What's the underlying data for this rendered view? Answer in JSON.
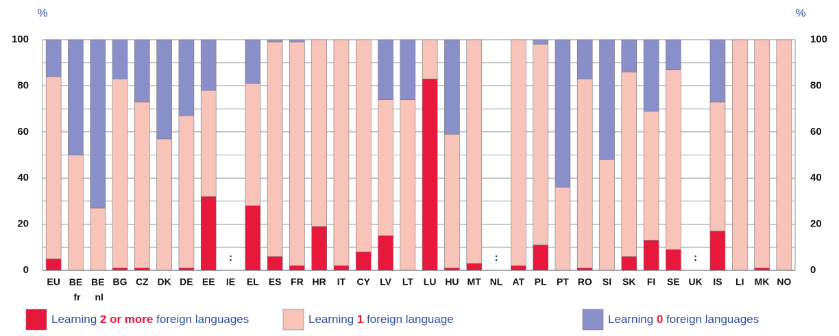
{
  "chart_data": {
    "type": "stacked_bar",
    "y_unit": "%",
    "na_label": ":",
    "categories": [
      "EU",
      "BE fr",
      "BE nl",
      "BG",
      "CZ",
      "DK",
      "DE",
      "EE",
      "IE",
      "EL",
      "ES",
      "FR",
      "HR",
      "IT",
      "CY",
      "LV",
      "LT",
      "LU",
      "HU",
      "MT",
      "NL",
      "AT",
      "PL",
      "PT",
      "RO",
      "SI",
      "SK",
      "FI",
      "SE",
      "UK",
      "IS",
      "LI",
      "MK",
      "NO"
    ],
    "series": [
      {
        "name": "Learning 2 or more foreign languages",
        "highlight": "2 or more",
        "color": "#e8173c",
        "values": [
          5,
          0,
          0,
          1,
          1,
          0,
          1,
          32,
          null,
          28,
          6,
          2,
          19,
          2,
          8,
          15,
          0,
          83,
          1,
          3,
          null,
          2,
          11,
          0,
          1,
          0,
          6,
          13,
          9,
          null,
          17,
          0,
          1,
          0
        ]
      },
      {
        "name": "Learning 1 foreign language",
        "highlight": "1",
        "color": "#f8c3b8",
        "values": [
          79,
          50,
          27,
          82,
          72,
          57,
          66,
          46,
          null,
          53,
          93,
          97,
          81,
          98,
          92,
          59,
          74,
          17,
          58,
          97,
          null,
          98,
          87,
          36,
          82,
          48,
          80,
          56,
          78,
          null,
          56,
          100,
          99,
          100
        ]
      },
      {
        "name": "Learning 0 foreign languages",
        "highlight": "0",
        "color": "#8a8fca",
        "values": [
          16,
          50,
          73,
          17,
          27,
          43,
          33,
          22,
          null,
          19,
          1,
          1,
          0,
          0,
          0,
          26,
          26,
          0,
          41,
          0,
          null,
          0,
          2,
          64,
          17,
          52,
          14,
          31,
          13,
          null,
          27,
          0,
          0,
          0
        ]
      }
    ],
    "ylim": [
      0,
      100
    ],
    "yticks": [
      0,
      20,
      40,
      60,
      80,
      100
    ],
    "minor_yticks": [
      10,
      30,
      50,
      70,
      90
    ],
    "grid": true
  }
}
